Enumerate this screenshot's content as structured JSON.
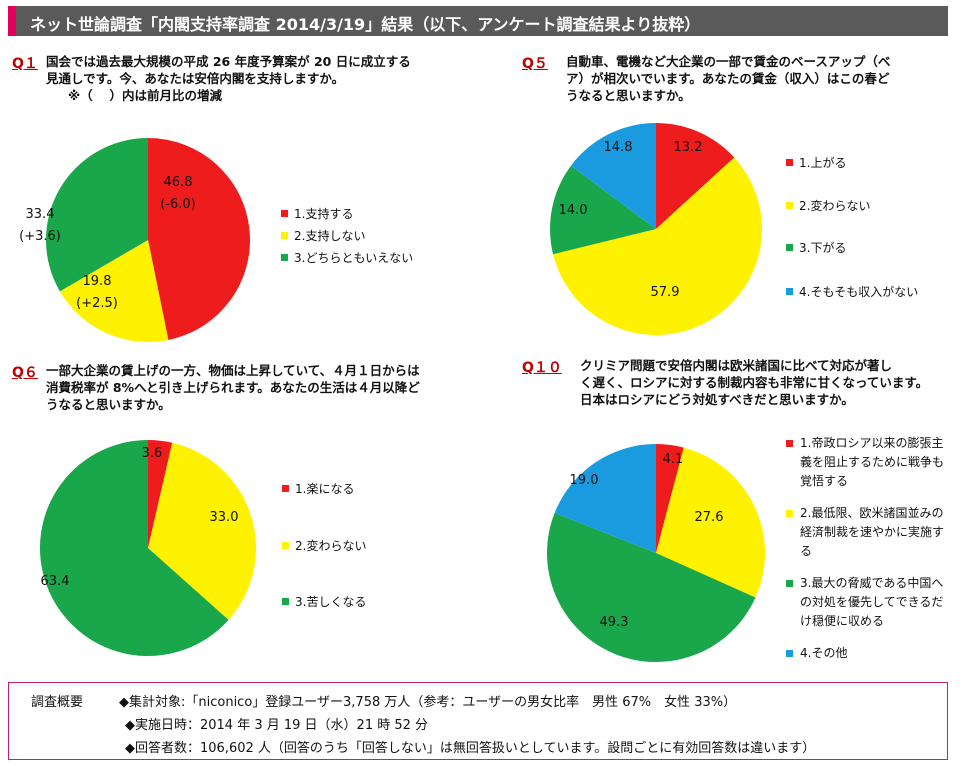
{
  "header": {
    "title": "ネット世論調査「内閣支持率調査 2014/3/19」結果（以下、アンケート調査結果より抜粋）"
  },
  "colors": {
    "red": "#ee1c1c",
    "yellow": "#fff200",
    "green": "#1aa64a",
    "blue": "#1a9be0"
  },
  "questions": [
    {
      "label": "Q１",
      "lines": [
        "国会では過去最大規模の平成 26 年度予算案が 20 日に成立する",
        "見通しです。今、あなたは安倍内閣を支持しますか。",
        "※（　 ）内は前月比の増減"
      ]
    },
    {
      "label": "Q５",
      "lines": [
        "自動車、電機など大企業の一部で賃金のベースアップ（ベ",
        "ア）が相次いでいます。あなたの賃金（収入）はこの春ど",
        "うなると思いますか。"
      ]
    },
    {
      "label": "Q６",
      "lines": [
        "一部大企業の賃上げの一方、物価は上昇していて、４月１日からは",
        "消費税率が 8%へと引き上げられます。あなたの生活は４月以降ど",
        "うなると思いますか。"
      ]
    },
    {
      "label": "Q１０",
      "lines": [
        "クリミア問題で安倍内閣は欧米諸国に比べて対応が著し",
        "く遅く、ロシアに対する制裁内容も非常に甘くなっています。",
        "日本はロシアにどう対処すべきだと思いますか。"
      ]
    }
  ],
  "chart_data": [
    {
      "type": "pie",
      "title": "Q１",
      "categories": [
        "1.支持する",
        "2.支持しない",
        "3.どちらともいえない"
      ],
      "values": [
        46.8,
        19.8,
        33.4
      ],
      "data_labels": [
        [
          "46.8",
          "(-6.0)"
        ],
        [
          "19.8",
          "(+2.5)"
        ],
        [
          "33.4",
          "(+3.6)"
        ]
      ],
      "colors": [
        "#ee1c1c",
        "#fff200",
        "#1aa64a"
      ]
    },
    {
      "type": "pie",
      "title": "Q５",
      "categories": [
        "1.上がる",
        "2.変わらない",
        "3.下がる",
        "4.そもそも収入がない"
      ],
      "values": [
        13.2,
        57.9,
        14.0,
        14.8
      ],
      "data_labels": [
        [
          "13.2"
        ],
        [
          "57.9"
        ],
        [
          "14.0"
        ],
        [
          "14.8"
        ]
      ],
      "colors": [
        "#ee1c1c",
        "#fff200",
        "#1aa64a",
        "#1a9be0"
      ]
    },
    {
      "type": "pie",
      "title": "Q６",
      "categories": [
        "1.楽になる",
        "2.変わらない",
        "3.苦しくなる"
      ],
      "values": [
        3.6,
        33.0,
        63.4
      ],
      "data_labels": [
        [
          "3.6"
        ],
        [
          "33.0"
        ],
        [
          "63.4"
        ]
      ],
      "colors": [
        "#ee1c1c",
        "#fff200",
        "#1aa64a"
      ]
    },
    {
      "type": "pie",
      "title": "Q１０",
      "categories": [
        "1.帝政ロシア以来の膨張主義を阻止するために戦争も覚悟する",
        "2.最低限、欧米諸国並みの経済制裁を速やかに実施する",
        "3.最大の脅威である中国への対処を優先してできるだけ穏便に収める",
        "4.その他"
      ],
      "values": [
        4.1,
        27.6,
        49.3,
        19.0
      ],
      "data_labels": [
        [
          "4.1"
        ],
        [
          "27.6"
        ],
        [
          "49.3"
        ],
        [
          "19.0"
        ]
      ],
      "colors": [
        "#ee1c1c",
        "#fff200",
        "#1aa64a",
        "#1a9be0"
      ]
    }
  ],
  "footer": {
    "heading": "調査概要",
    "lines": [
      "◆集計対象:「niconico」登録ユーザー3,758 万人（参考：ユーザーの男女比率　男性 67%　女性 33%）",
      "◆実施日時：2014 年 3 月 19 日（水）21 時 52 分",
      "◆回答者数：106,602 人（回答のうち「回答しない」は無回答扱いとしています。設問ごとに有効回答数は違います）"
    ]
  }
}
